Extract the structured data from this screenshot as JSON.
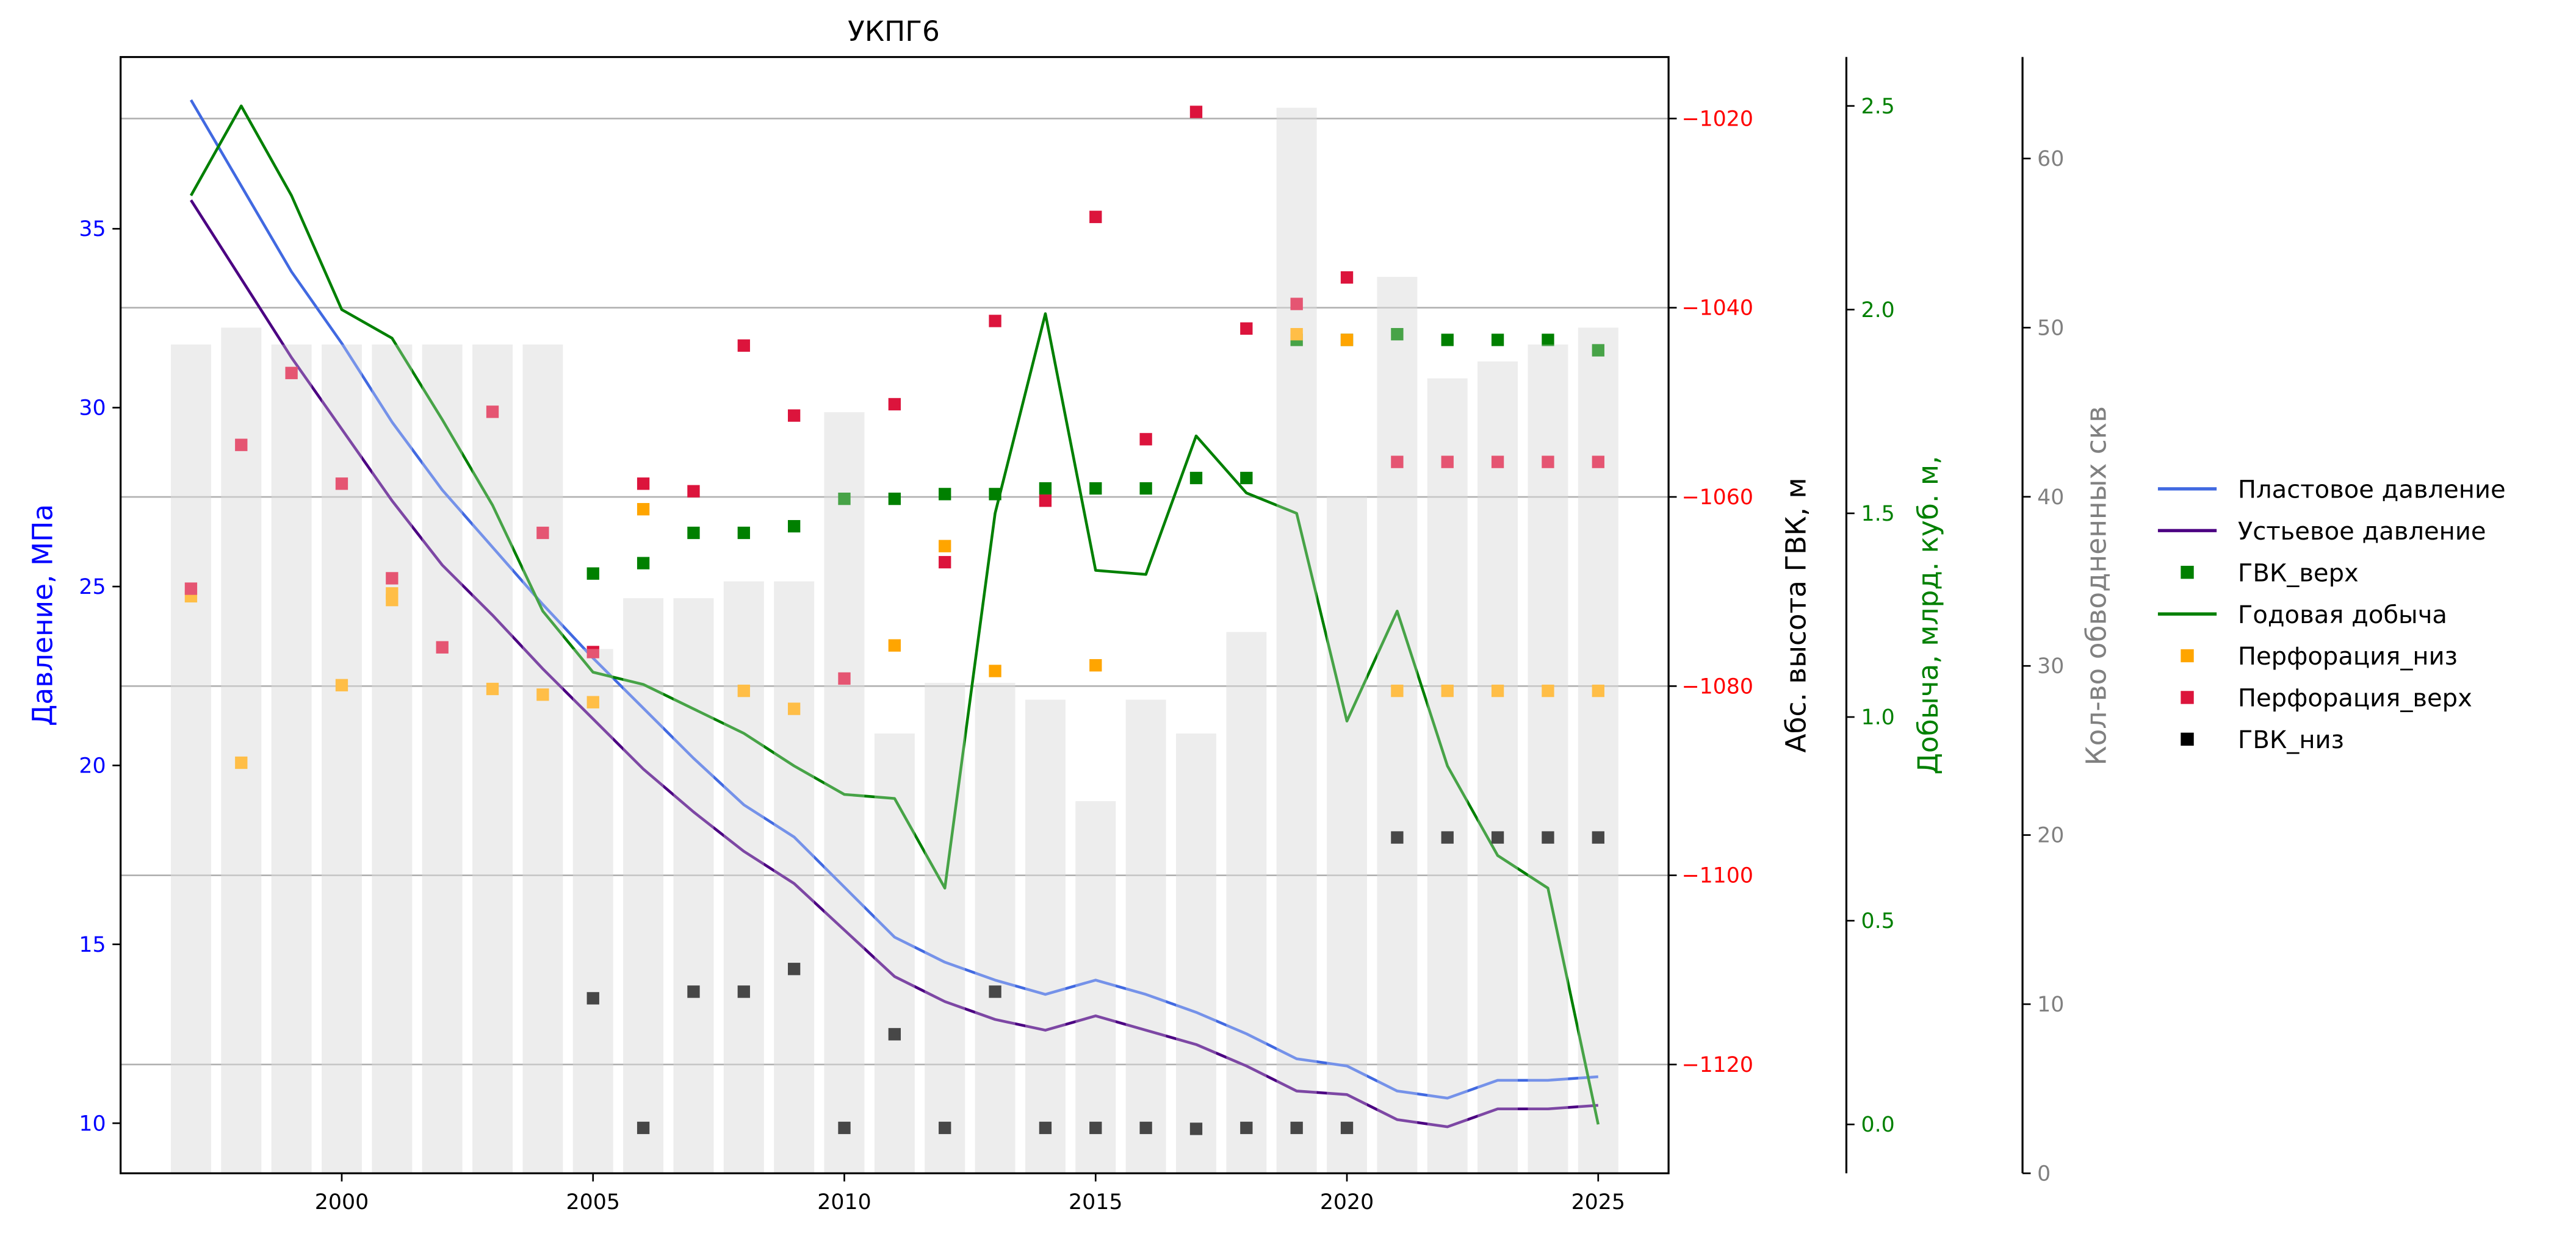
{
  "chart_data": {
    "type": "line",
    "title": "УКПГ6",
    "xlabel": "",
    "x": [
      1997,
      1998,
      1999,
      2000,
      2001,
      2002,
      2003,
      2004,
      2005,
      2006,
      2007,
      2008,
      2009,
      2010,
      2011,
      2012,
      2013,
      2014,
      2015,
      2016,
      2017,
      2018,
      2019,
      2020,
      2021,
      2022,
      2023,
      2024,
      2025
    ],
    "xticks": [
      "2000",
      "2005",
      "2010",
      "2015",
      "2020",
      "2025"
    ],
    "xlim": [
      1995.6,
      2026.4
    ],
    "grid": "horizontal lines at right-axis (ГВК) ticks",
    "legend_position": "outside right",
    "axes": {
      "pressure": {
        "label": "Давление, МПа",
        "color": "#0000ff",
        "ylim": [
          8.6,
          39.8
        ],
        "ticks": [
          "10",
          "15",
          "20",
          "25",
          "30",
          "35"
        ]
      },
      "gvk": {
        "label": "Абс. высота ГВК, м",
        "color": "#000000",
        "tick_color": "#ff0000",
        "ylim": [
          -1131.5,
          -1013.5
        ],
        "ticks": [
          "−1020",
          "−1040",
          "−1060",
          "−1080",
          "−1100",
          "−1120"
        ]
      },
      "production": {
        "label": "Добыча, млрд. куб. м,",
        "color": "#008000",
        "ylim": [
          -0.12,
          2.62
        ],
        "ticks": [
          "0.0",
          "0.5",
          "1.0",
          "1.5",
          "2.0",
          "2.5"
        ]
      },
      "wells": {
        "label": "Кол-во обводненных скв",
        "color": "#808080",
        "ylim": [
          0,
          66
        ],
        "ticks": [
          "0",
          "10",
          "20",
          "30",
          "40",
          "50",
          "60"
        ]
      }
    },
    "series": [
      {
        "name": "Пластовое давление",
        "kind": "line",
        "axis": "pressure",
        "color": "#4169e1",
        "values": [
          38.6,
          36.2,
          33.8,
          31.8,
          29.6,
          27.7,
          26.1,
          24.5,
          23.0,
          21.6,
          20.2,
          18.9,
          18.0,
          16.6,
          15.2,
          14.5,
          14.0,
          13.6,
          14.0,
          13.6,
          13.1,
          12.5,
          11.8,
          11.6,
          10.9,
          10.7,
          11.2,
          11.2,
          11.3
        ]
      },
      {
        "name": "Устьевое давление",
        "kind": "line",
        "axis": "pressure",
        "color": "#4b0082",
        "values": [
          35.8,
          33.6,
          31.4,
          29.4,
          27.4,
          25.6,
          24.2,
          22.7,
          21.3,
          19.9,
          18.7,
          17.6,
          16.7,
          15.4,
          14.1,
          13.4,
          12.9,
          12.6,
          13.0,
          12.6,
          12.2,
          11.6,
          10.9,
          10.8,
          10.1,
          9.9,
          10.4,
          10.4,
          10.5
        ]
      },
      {
        "name": "ГВК_верх",
        "kind": "marker",
        "axis": "gvk",
        "color": "#008000",
        "x": [
          2005,
          2006,
          2007,
          2008,
          2009,
          2010,
          2011,
          2012,
          2013,
          2014,
          2015,
          2016,
          2017,
          2018,
          2019,
          2020,
          2021,
          2022,
          2023,
          2024,
          2025
        ],
        "values": [
          -1068.1,
          -1067.0,
          -1063.8,
          -1063.8,
          -1063.1,
          -1060.2,
          -1060.2,
          -1059.7,
          -1059.7,
          -1059.1,
          -1059.1,
          -1059.1,
          -1058.0,
          -1058.0,
          -1043.4,
          -1043.4,
          -1042.8,
          -1043.4,
          -1043.4,
          -1043.4,
          -1044.5
        ]
      },
      {
        "name": "Годовая добыча",
        "kind": "line",
        "axis": "production",
        "color": "#008000",
        "values": [
          2.28,
          2.5,
          2.28,
          2.0,
          1.93,
          1.73,
          1.52,
          1.26,
          1.11,
          1.08,
          1.02,
          0.96,
          0.88,
          0.81,
          0.8,
          0.58,
          1.5,
          1.99,
          1.36,
          1.35,
          1.69,
          1.55,
          1.5,
          0.99,
          1.26,
          0.88,
          0.66,
          0.58,
          0.0
        ]
      },
      {
        "name": "Перфорация_низ",
        "kind": "marker",
        "axis": "gvk",
        "color": "#ffa500",
        "values": [
          -1070.5,
          -1088.1,
          null,
          -1079.9,
          -1070.9,
          null,
          -1080.3,
          -1080.9,
          -1081.7,
          null,
          null,
          null,
          -1082.4,
          -1061.3,
          -1065.2,
          -1075.7,
          -1070.2,
          -1078.4,
          -1080.5,
          -1077.8,
          null,
          null,
          -1042.8,
          -1043.4,
          -1080.5,
          -1080.5,
          -1080.5,
          -1080.5,
          -1080.5
        ],
        "x": [
          1997,
          1998,
          null,
          2000,
          2001,
          null,
          2003,
          2004,
          2005,
          null,
          null,
          null,
          2009,
          2006,
          2012,
          2011,
          2001,
          2013,
          2008,
          2015,
          null,
          null,
          2019,
          2020,
          2021,
          2022,
          2023,
          2024,
          2025
        ]
      },
      {
        "name": "Перфорация_верх",
        "kind": "marker",
        "axis": "gvk",
        "color": "#dc143c",
        "x": [
          1997,
          1998,
          1999,
          2000,
          2001,
          2002,
          2003,
          2004,
          2005,
          2006,
          2007,
          2008,
          2009,
          2010,
          2011,
          2012,
          2013,
          2014,
          2015,
          2016,
          2017,
          2018,
          2019,
          2020,
          2021,
          2022,
          2023,
          2024,
          2025
        ],
        "values": [
          -1069.7,
          -1054.5,
          -1046.9,
          -1058.6,
          -1068.6,
          -1075.9,
          -1051.0,
          -1063.8,
          -1076.4,
          -1058.6,
          -1059.4,
          -1044.0,
          -1051.4,
          -1079.2,
          -1050.2,
          -1066.9,
          -1041.4,
          -1060.4,
          -1030.4,
          -1053.9,
          -1019.3,
          -1042.2,
          -1039.6,
          -1036.8,
          -1056.3,
          -1056.3,
          -1056.3,
          -1056.3,
          -1056.3
        ]
      },
      {
        "name": "ГВК_низ",
        "kind": "marker",
        "axis": "gvk",
        "color": "#000000",
        "x": [
          2005,
          2006,
          2007,
          2008,
          2009,
          2010,
          2011,
          2012,
          2013,
          2014,
          2015,
          2016,
          2017,
          2018,
          2019,
          2020,
          2021,
          2022,
          2023,
          2024,
          2025
        ],
        "values": [
          -1113.0,
          -1126.7,
          -1112.3,
          -1112.3,
          -1109.9,
          -1126.7,
          -1116.8,
          -1126.7,
          -1112.3,
          -1126.7,
          -1126.7,
          -1126.7,
          -1126.8,
          -1126.7,
          -1126.7,
          -1126.7,
          -1096.0,
          -1096.0,
          -1096.0,
          -1096.0,
          -1096.0
        ]
      },
      {
        "name": "Кол-во обводненных скв",
        "kind": "bar",
        "axis": "wells",
        "color": "#e6e6e6",
        "x": [
          1997,
          1998,
          1999,
          2000,
          2001,
          2002,
          2003,
          2004,
          2005,
          2006,
          2007,
          2008,
          2009,
          2010,
          2011,
          2012,
          2013,
          2014,
          2015,
          2016,
          2017,
          2018,
          2019,
          2020,
          2021,
          2022,
          2023,
          2024,
          2025
        ],
        "values": [
          49,
          50,
          49,
          49,
          49,
          49,
          49,
          49,
          31,
          34,
          34,
          35,
          35,
          45,
          26,
          29,
          29,
          28,
          22,
          28,
          26,
          32,
          63,
          40,
          53,
          47,
          48,
          49,
          50
        ]
      }
    ],
    "legend": [
      "Пластовое давление",
      "Устьевое давление",
      "ГВК_верх",
      "Годовая добыча",
      "Перфорация_низ",
      "Перфорация_верх",
      "ГВК_низ"
    ]
  }
}
